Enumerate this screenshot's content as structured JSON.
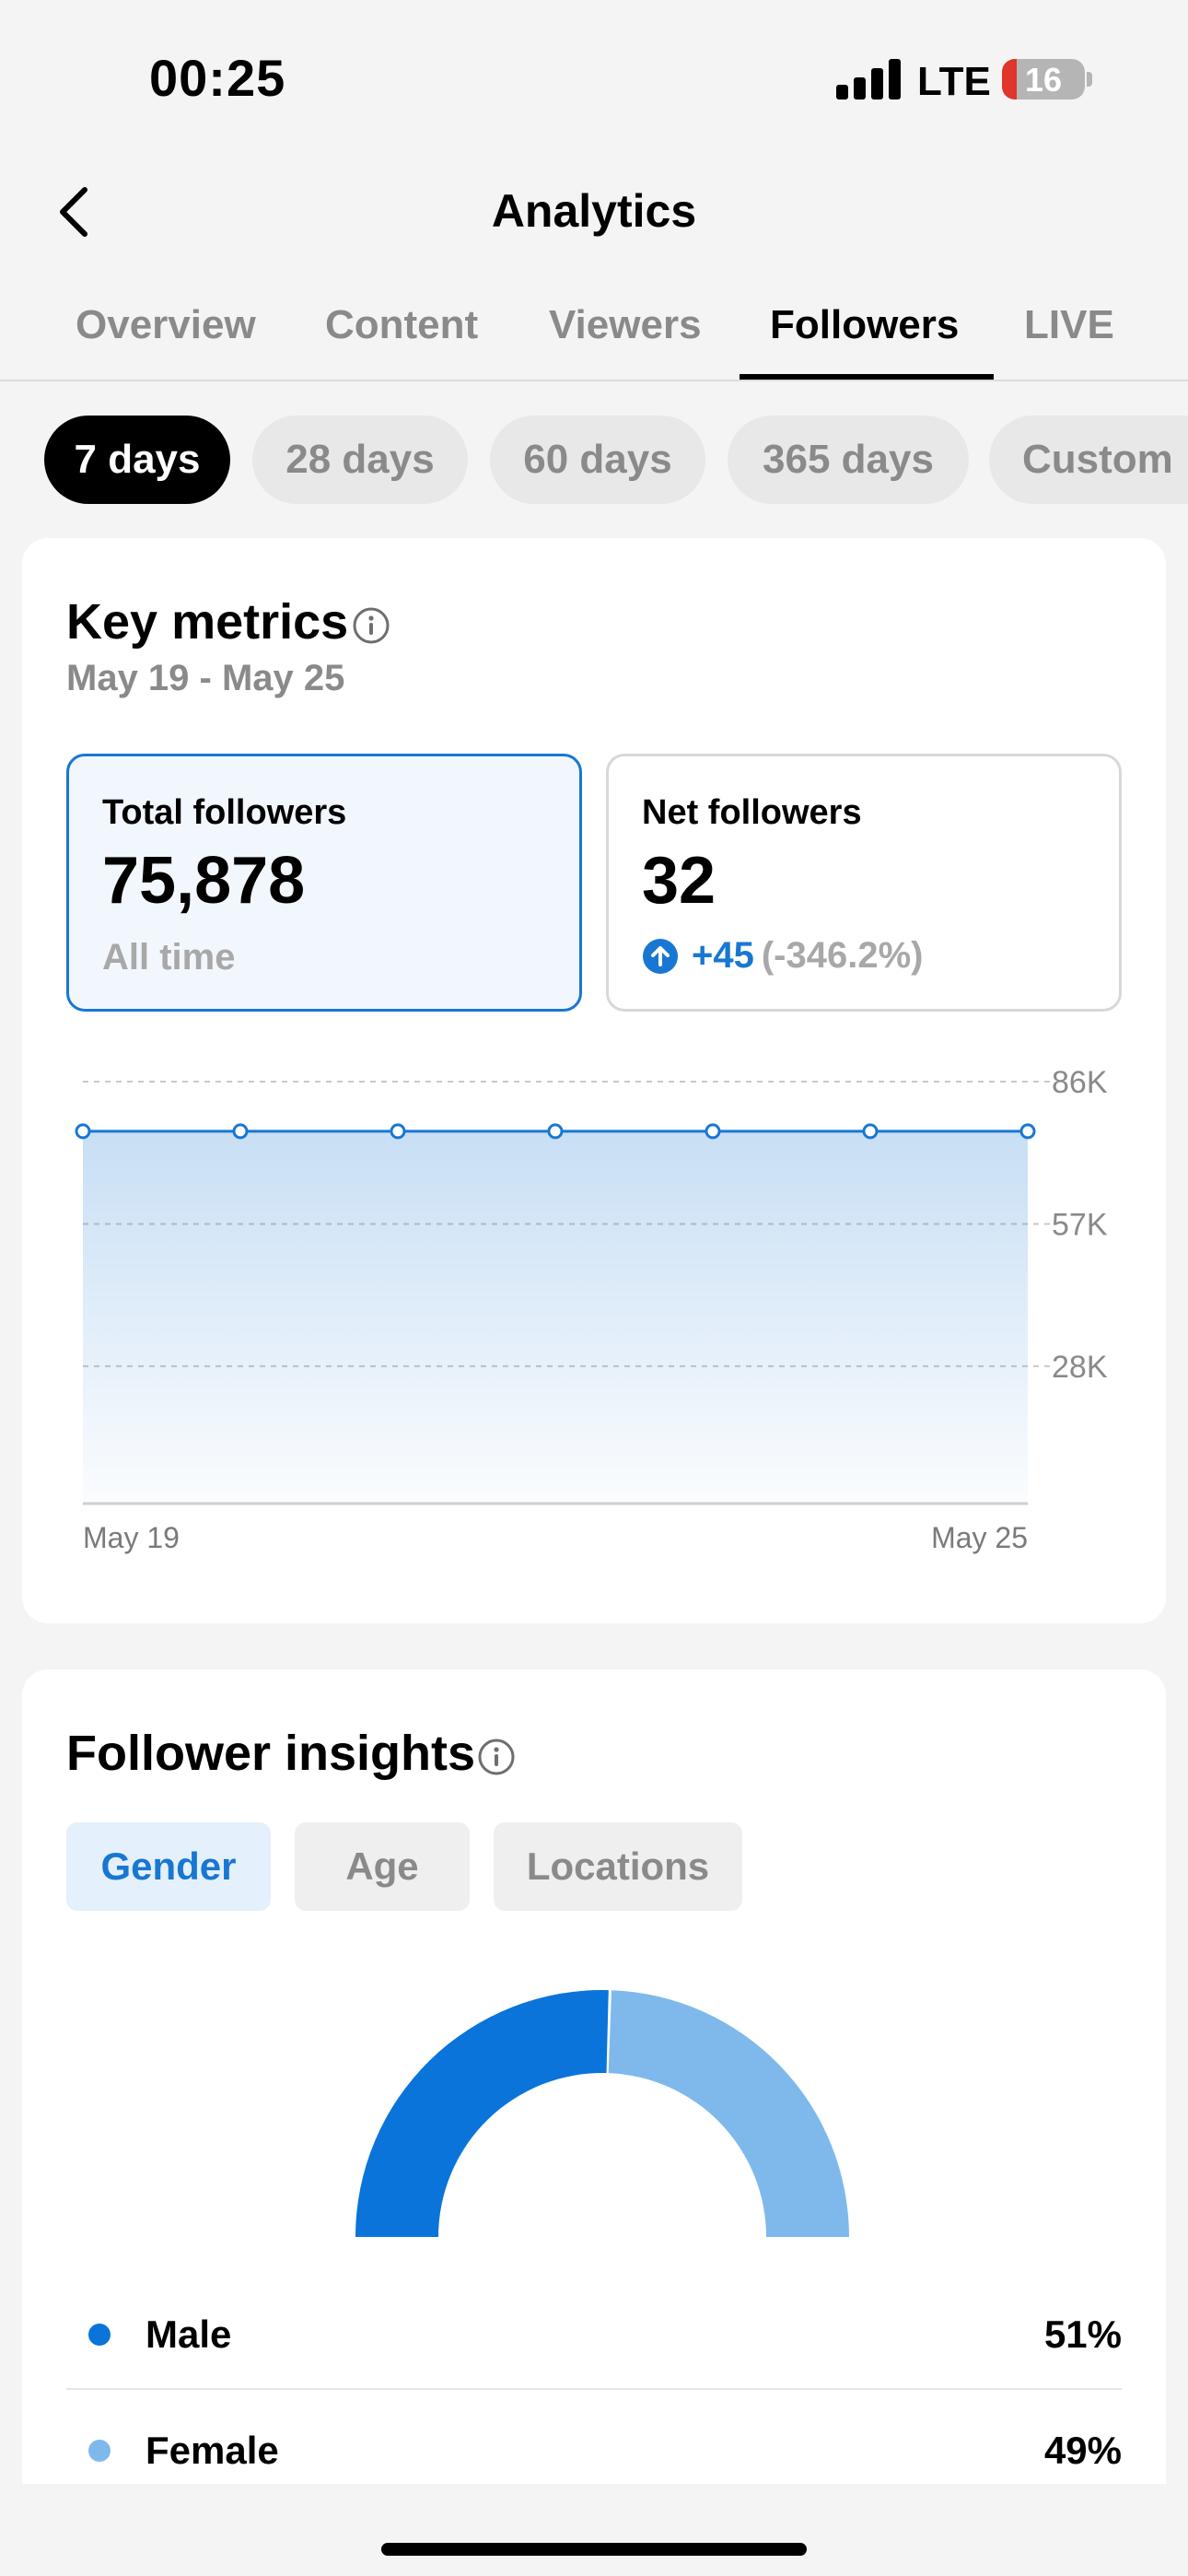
{
  "status_bar": {
    "time": "00:25",
    "network": "LTE",
    "battery": "16"
  },
  "header": {
    "title": "Analytics"
  },
  "tabs": [
    {
      "label": "Overview"
    },
    {
      "label": "Content"
    },
    {
      "label": "Viewers"
    },
    {
      "label": "Followers",
      "active": true
    },
    {
      "label": "LIVE"
    }
  ],
  "periods": [
    {
      "label": "7 days",
      "active": true
    },
    {
      "label": "28 days"
    },
    {
      "label": "60 days"
    },
    {
      "label": "365 days"
    },
    {
      "label": "Custom"
    }
  ],
  "key_metrics": {
    "title": "Key metrics",
    "date_range": "May 19 - May 25",
    "total_followers": {
      "label": "Total followers",
      "value": "75,878",
      "sub": "All time"
    },
    "net_followers": {
      "label": "Net followers",
      "value": "32",
      "change": "+45",
      "change_pct": "(-346.2%)"
    }
  },
  "chart_data": {
    "type": "area",
    "x": [
      "May 19",
      "May 20",
      "May 21",
      "May 22",
      "May 23",
      "May 24",
      "May 25"
    ],
    "x_tick_labels": [
      "May 19",
      "May 25"
    ],
    "values": [
      75878,
      75878,
      75878,
      75878,
      75878,
      75878,
      75878
    ],
    "y_tick_labels": [
      "86K",
      "57K",
      "28K"
    ],
    "y_ticks": [
      86000,
      57000,
      28000
    ],
    "ylim": [
      0,
      86000
    ],
    "grid": true,
    "color": "#1877d2"
  },
  "insights": {
    "title": "Follower insights",
    "segments": [
      {
        "label": "Gender",
        "active": true
      },
      {
        "label": "Age"
      },
      {
        "label": "Locations"
      }
    ],
    "gender": [
      {
        "label": "Male",
        "value": "51%",
        "fraction": 0.51,
        "color": "#0a74da"
      },
      {
        "label": "Female",
        "value": "49%",
        "fraction": 0.49,
        "color": "#7fb9ec"
      }
    ]
  }
}
